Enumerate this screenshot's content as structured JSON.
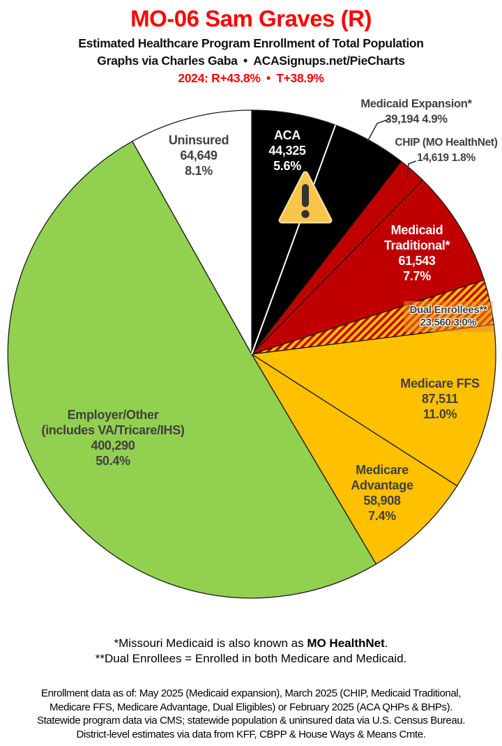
{
  "header": {
    "title": "MO-06 Sam Graves (R)",
    "title_color": "#FE0000",
    "subtitle1": "Estimated Healthcare Program Enrollment of Total Population",
    "subtitle2": "Graphs via Charles Gaba • ACASignups.net/PieCharts",
    "partisan_line": "2024: R+43.8% • T+38.9%",
    "partisan_color": "#FE0000"
  },
  "chart_data": {
    "type": "pie",
    "title": "MO-06 Sam Graves (R) — Estimated Healthcare Program Enrollment of Total Population",
    "start_angle": "12 o'clock, clockwise",
    "legend_position": "labels on or beside slices",
    "colors": {
      "black": "#000000",
      "dark_red": "#C00000",
      "gold": "#FFC000",
      "green": "#92D050",
      "white": "#FFFFFF",
      "label_gray": "#404040"
    },
    "slices": [
      {
        "id": "aca",
        "label": "ACA",
        "value": 44325,
        "display_value": "44,325",
        "display_pct": "5.6%",
        "color": "#000000",
        "text_color": "#FFFFFF",
        "label_lines": [
          "ACA",
          "44,325",
          "5.6%"
        ]
      },
      {
        "id": "medicaid-expansion",
        "label": "Medicaid Expansion*",
        "value": 39194,
        "display_value": "39,194",
        "display_pct": "4.9%",
        "color": "#000000",
        "text_color": "#404040",
        "label_lines": [
          "Medicaid Expansion*",
          "39,194 4.9%"
        ]
      },
      {
        "id": "chip",
        "label": "CHIP (MO HealthNet)",
        "value": 14619,
        "display_value": "14,619",
        "display_pct": "1.8%",
        "color": "#C00000",
        "text_color": "#404040",
        "label_lines": [
          "CHIP (MO HealthNet)",
          "14,619 1.8%"
        ]
      },
      {
        "id": "medicaid-traditional",
        "label": "Medicaid Traditional*",
        "value": 61543,
        "display_value": "61,543",
        "display_pct": "7.7%",
        "color": "#C00000",
        "text_color": "#FFFFFF",
        "label_lines": [
          "Medicaid",
          "Traditional*",
          "61,543",
          "7.7%"
        ]
      },
      {
        "id": "dual-enrollees",
        "label": "Dual Enrollees**",
        "value": 23560,
        "display_value": "23,560",
        "display_pct": "3.0%",
        "color": "hatch",
        "hatch_colors": [
          "#C00000",
          "#FFC000"
        ],
        "text_color": "#404040",
        "label_lines": [
          "Dual Enrollees**",
          "23,560 3.0%"
        ]
      },
      {
        "id": "medicare-ffs",
        "label": "Medicare FFS",
        "value": 87511,
        "display_value": "87,511",
        "display_pct": "11.0%",
        "color": "#FFC000",
        "text_color": "#404040",
        "label_lines": [
          "Medicare FFS",
          "87,511",
          "11.0%"
        ]
      },
      {
        "id": "medicare-advantage",
        "label": "Medicare Advantage",
        "value": 58908,
        "display_value": "58,908",
        "display_pct": "7.4%",
        "color": "#FFC000",
        "text_color": "#404040",
        "label_lines": [
          "Medicare",
          "Advantage",
          "58,908",
          "7.4%"
        ]
      },
      {
        "id": "employer-other",
        "label": "Employer/Other (includes VA/Tricare/IHS)",
        "value": 400290,
        "display_value": "400,290",
        "display_pct": "50.4%",
        "color": "#92D050",
        "text_color": "#404040",
        "label_lines": [
          "Employer/Other",
          "(includes VA/Tricare/IHS)",
          "400,290",
          "50.4%"
        ]
      },
      {
        "id": "uninsured",
        "label": "Uninsured",
        "value": 64649,
        "display_value": "64,649",
        "display_pct": "8.1%",
        "color": "#FFFFFF",
        "text_color": "#404040",
        "label_lines": [
          "Uninsured",
          "64,649",
          "8.1%"
        ]
      }
    ]
  },
  "icons": {
    "warning": "warning-triangle-exclamation"
  },
  "footnotes": {
    "note1_prefix": "*Missouri Medicaid is also known as ",
    "note1_bold": "MO HealthNet",
    "note1_suffix": ".",
    "note2": "**Dual Enrollees = Enrolled in both Medicare and Medicaid.",
    "source_lines": [
      "Enrollment data as of: May 2025 (Medicaid expansion), March 2025 (CHIP, Medicaid Traditional,",
      "Medicare FFS, Medicare Advantage, Dual Eligibles) or February 2025 (ACA QHPs & BHPs).",
      "Statewide program data via CMS; statewide population & uninsured data via U.S. Census Bureau.",
      "District-level estimates via data from KFF, CBPP & House Ways & Means Cmte."
    ]
  }
}
